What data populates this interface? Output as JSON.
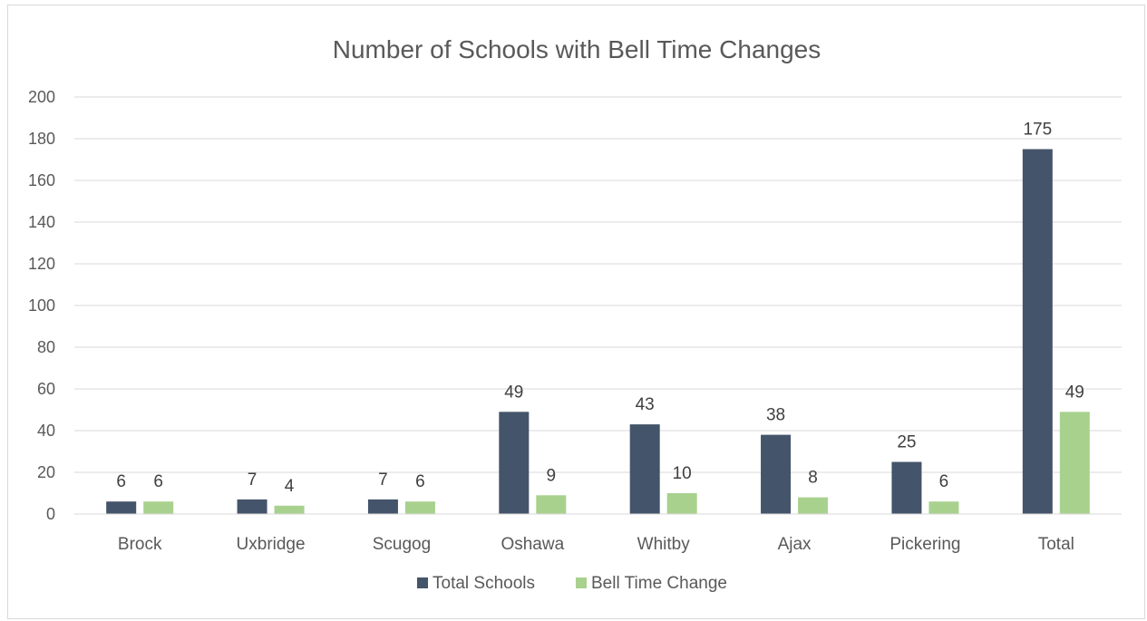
{
  "chart_data": {
    "type": "bar",
    "title": "Number of Schools with Bell Time Changes",
    "categories": [
      "Brock",
      "Uxbridge",
      "Scugog",
      "Oshawa",
      "Whitby",
      "Ajax",
      "Pickering",
      "Total"
    ],
    "series": [
      {
        "name": "Total Schools",
        "values": [
          6,
          7,
          7,
          49,
          43,
          38,
          25,
          175
        ],
        "color": "#44546a"
      },
      {
        "name": "Bell Time Change",
        "values": [
          6,
          4,
          6,
          9,
          10,
          8,
          6,
          49
        ],
        "color": "#a9d18e"
      }
    ],
    "ylim": [
      0,
      200
    ],
    "yticks": [
      0,
      20,
      40,
      60,
      80,
      100,
      120,
      140,
      160,
      180,
      200
    ],
    "grid": true,
    "legend": "bottom",
    "data_labels": true
  }
}
